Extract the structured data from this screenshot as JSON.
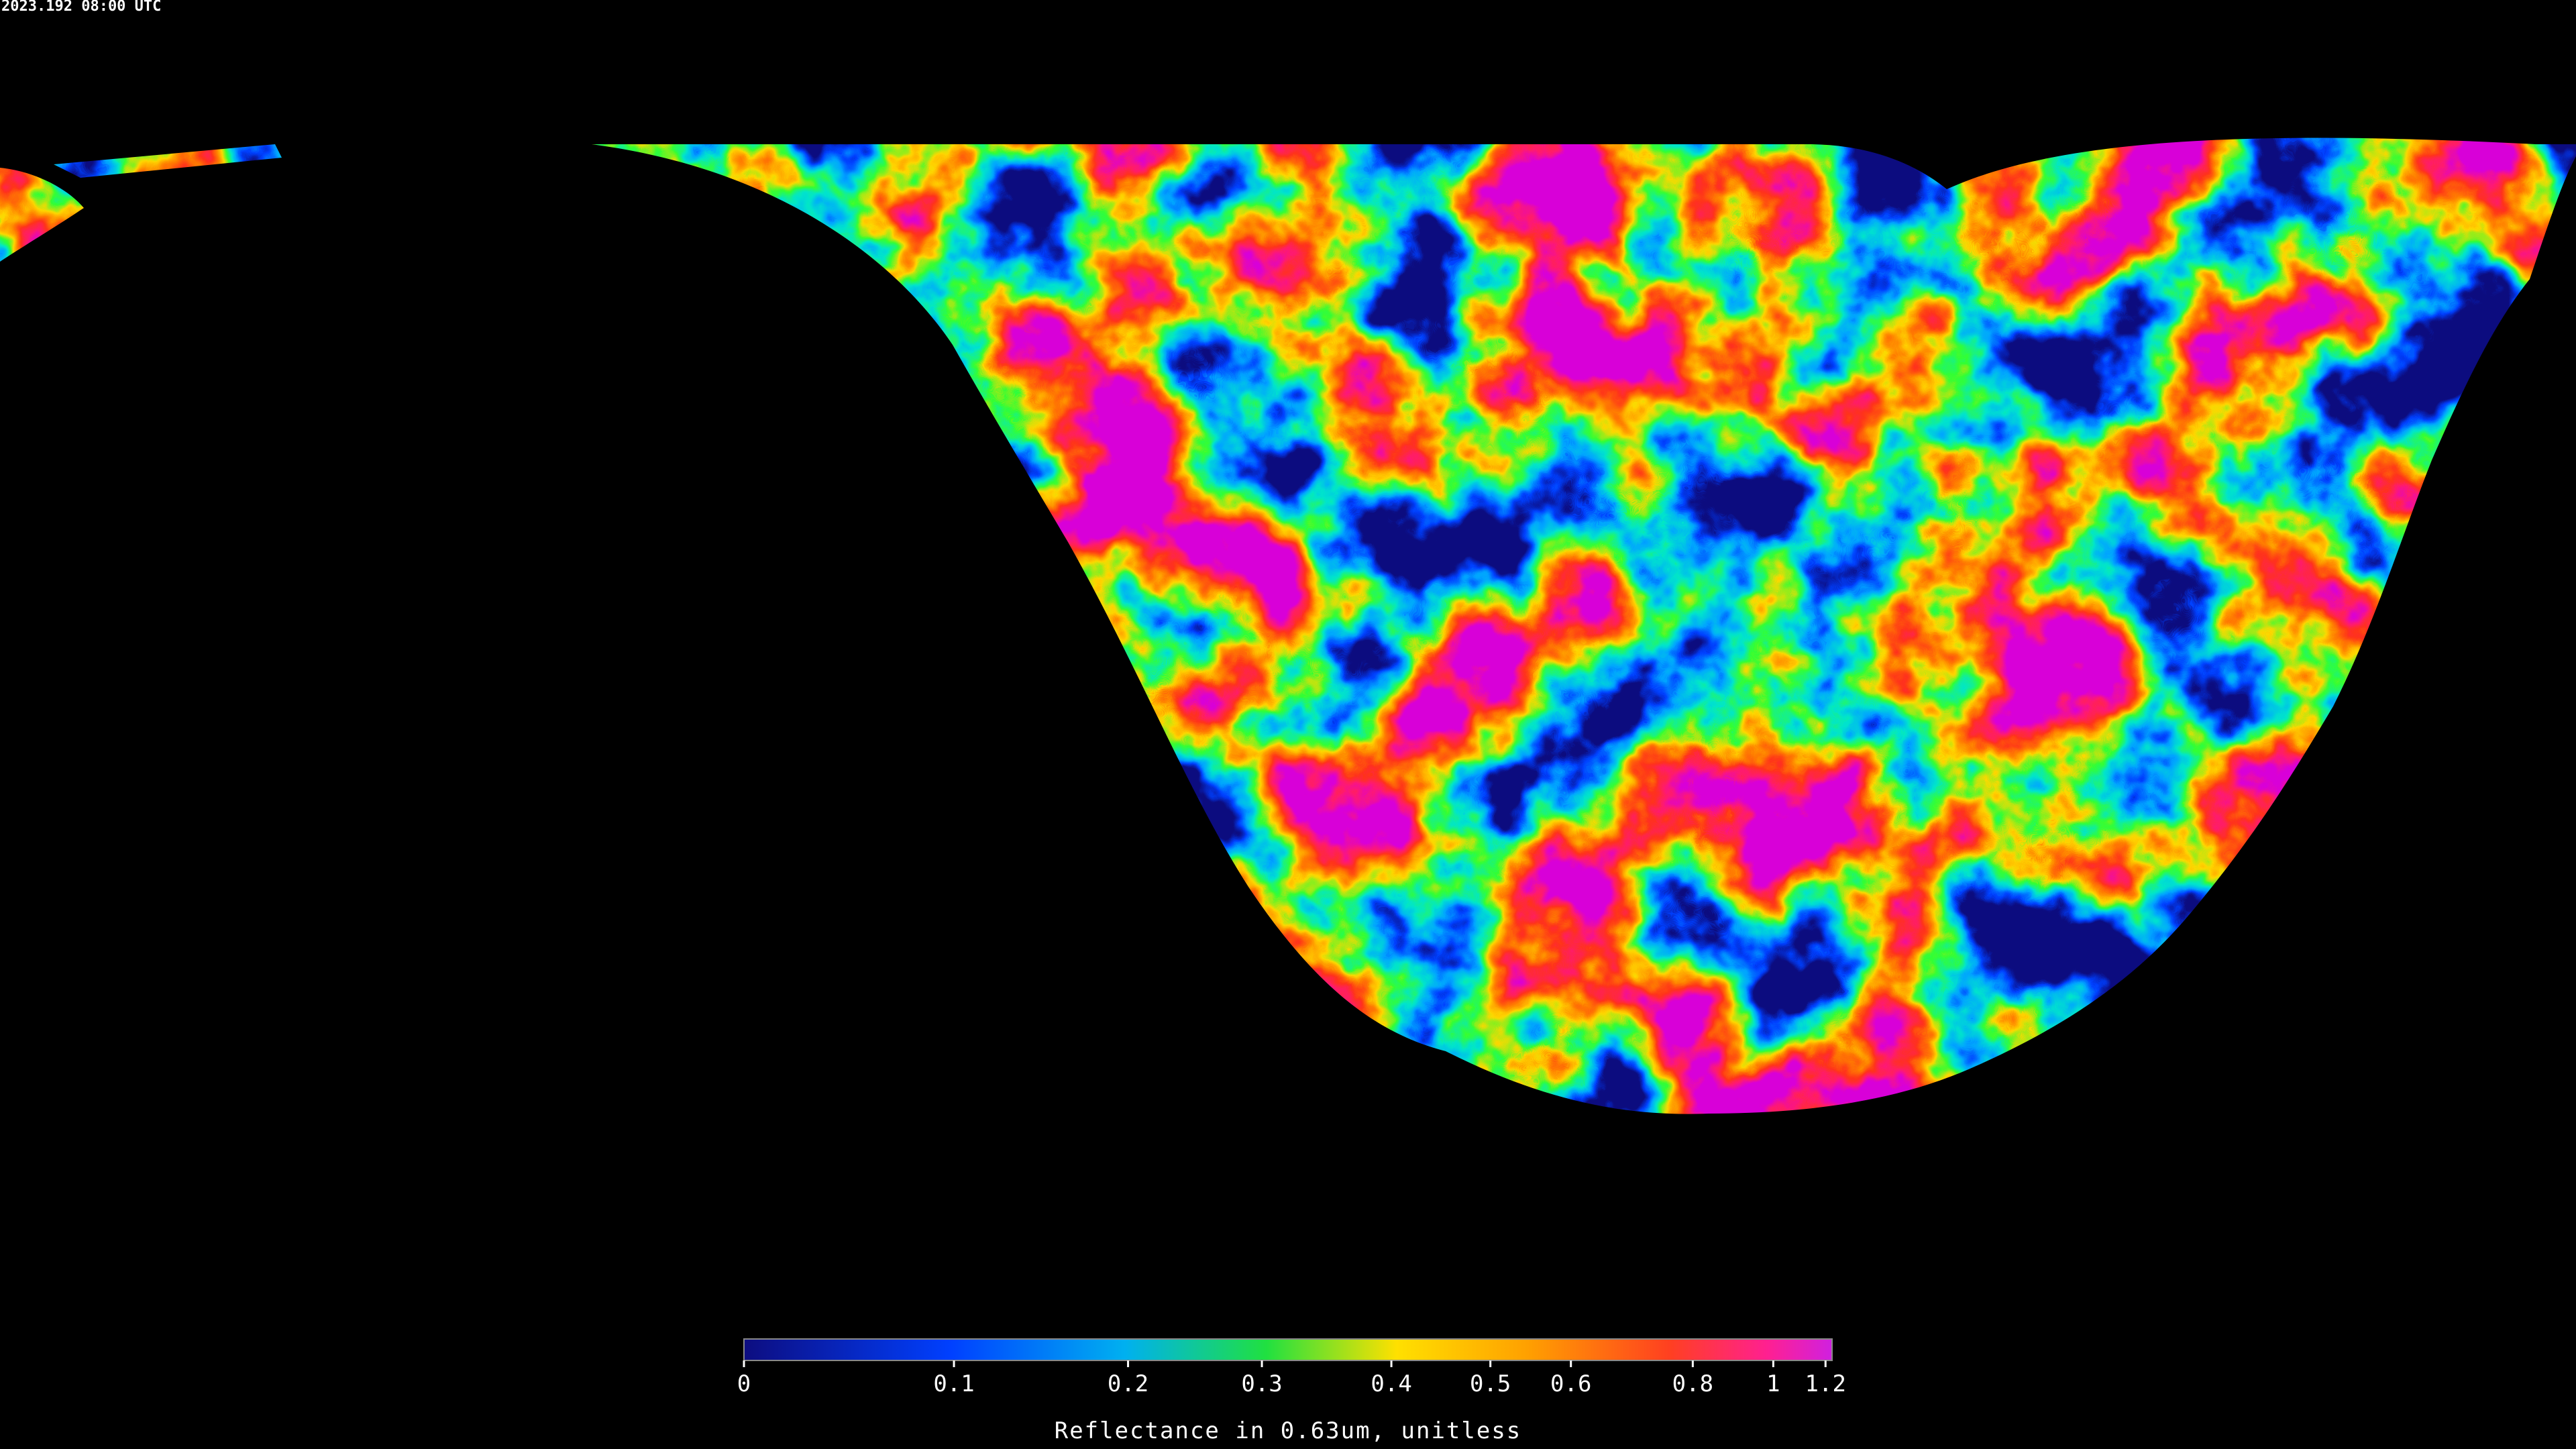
{
  "timestamp": "2023.192 08:00 UTC",
  "colorbar": {
    "ticks": [
      0,
      0.1,
      0.2,
      0.3,
      0.4,
      0.5,
      0.6,
      0.8,
      1,
      1.2
    ],
    "label": "Reflectance in 0.63um, unitless"
  }
}
